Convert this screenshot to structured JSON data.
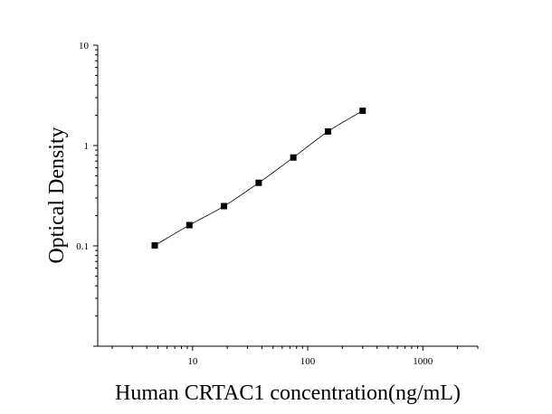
{
  "chart_data": {
    "type": "scatter",
    "title": "",
    "xlabel": "Human CRTAC1 concentration(ng/mL)",
    "ylabel": "Optical Density",
    "x_scale": "log",
    "y_scale": "log",
    "xlim": [
      1.5,
      3000
    ],
    "ylim": [
      0.01,
      10
    ],
    "x_ticks": [
      {
        "value": 10,
        "label": "10"
      },
      {
        "value": 100,
        "label": "100"
      },
      {
        "value": 1000,
        "label": "1000"
      }
    ],
    "y_ticks": [
      {
        "value": 0.1,
        "label": "0.1"
      },
      {
        "value": 1,
        "label": "1"
      },
      {
        "value": 10,
        "label": "10"
      }
    ],
    "grid": false,
    "legend": "none",
    "series": [
      {
        "x": [
          4.69,
          9.38,
          18.75,
          37.5,
          75,
          150,
          300
        ],
        "y": [
          0.101,
          0.161,
          0.249,
          0.425,
          0.76,
          1.38,
          2.22
        ],
        "marker": "square",
        "fit_curve": true,
        "color": "#000000"
      }
    ]
  }
}
